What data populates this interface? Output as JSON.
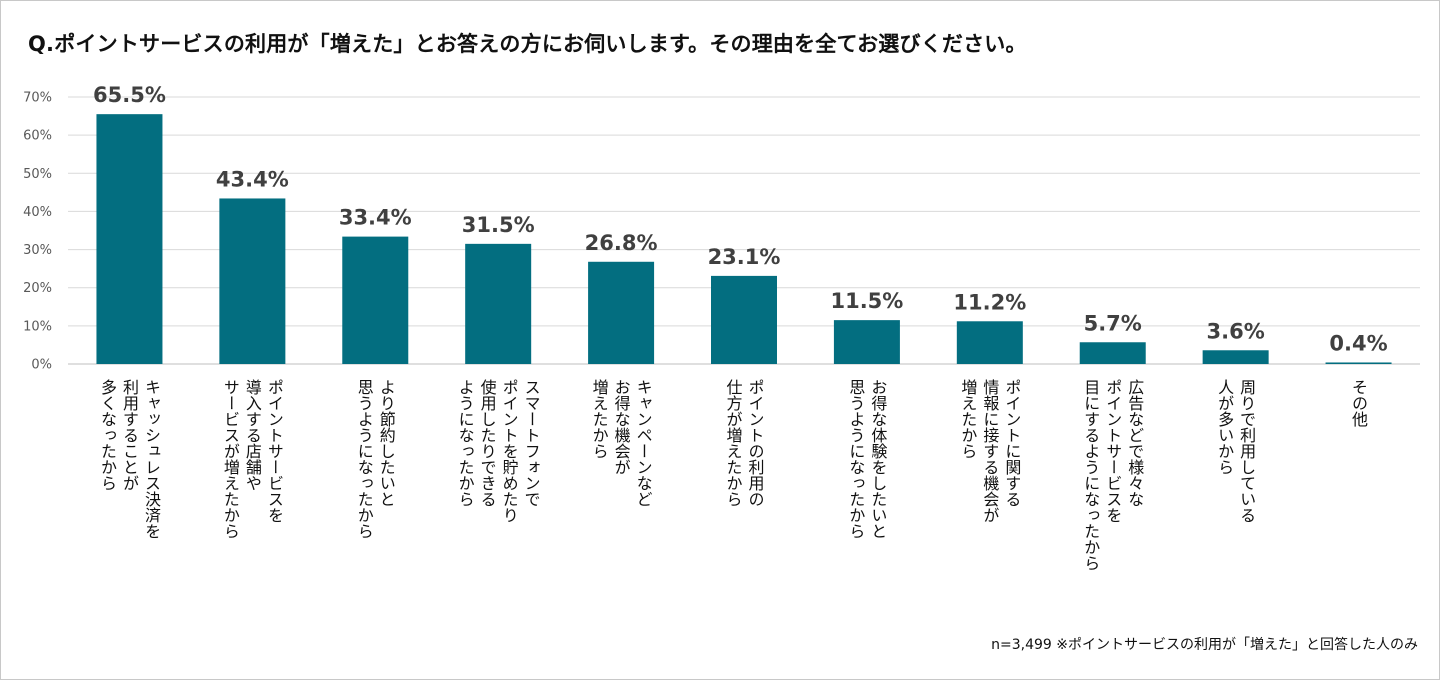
{
  "title": "Q.ポイントサービスの利用が「増えた」とお答えの方にお伺いします。その理由を全てお選びください。",
  "footnote": "n=3,499 ※ポイントサービスの利用が「増えた」と回答した人のみ",
  "colors": {
    "bar": "#036e80",
    "grid": "#d9d9d9",
    "axis": "#bfbfbf"
  },
  "chart_data": {
    "type": "bar",
    "title": "Q.ポイントサービスの利用が「増えた」とお答えの方にお伺いします。その理由を全てお選びください。",
    "ylim": [
      0,
      70
    ],
    "yticks": [
      "0%",
      "10%",
      "20%",
      "30%",
      "40%",
      "50%",
      "60%",
      "70%"
    ],
    "grid": true,
    "categories": [
      "キャッシュレス決済を\n利用することが\n多くなったから",
      "ポイントサービスを\n導入する店舗や\nサービスが増えたから",
      "より節約したいと\n思うようになったから",
      "スマートフォンで\nポイントを貯めたり\n使用したりできる\nようになったから",
      "キャンペーンなど\nお得な機会が\n増えたから",
      "ポイントの利用の\n仕方が増えたから",
      "お得な体験をしたいと\n思うようになったから",
      "ポイントに関する\n情報に接する機会が\n増えたから",
      "広告などで様々な\nポイントサービスを\n目にするようになったから",
      "周りで利用している\n人が多いから",
      "その他"
    ],
    "values": [
      65.5,
      43.4,
      33.4,
      31.5,
      26.8,
      23.1,
      11.5,
      11.2,
      5.7,
      3.6,
      0.4
    ],
    "value_labels": [
      "65.5%",
      "43.4%",
      "33.4%",
      "31.5%",
      "26.8%",
      "23.1%",
      "11.5%",
      "11.2%",
      "5.7%",
      "3.6%",
      "0.4%"
    ]
  }
}
